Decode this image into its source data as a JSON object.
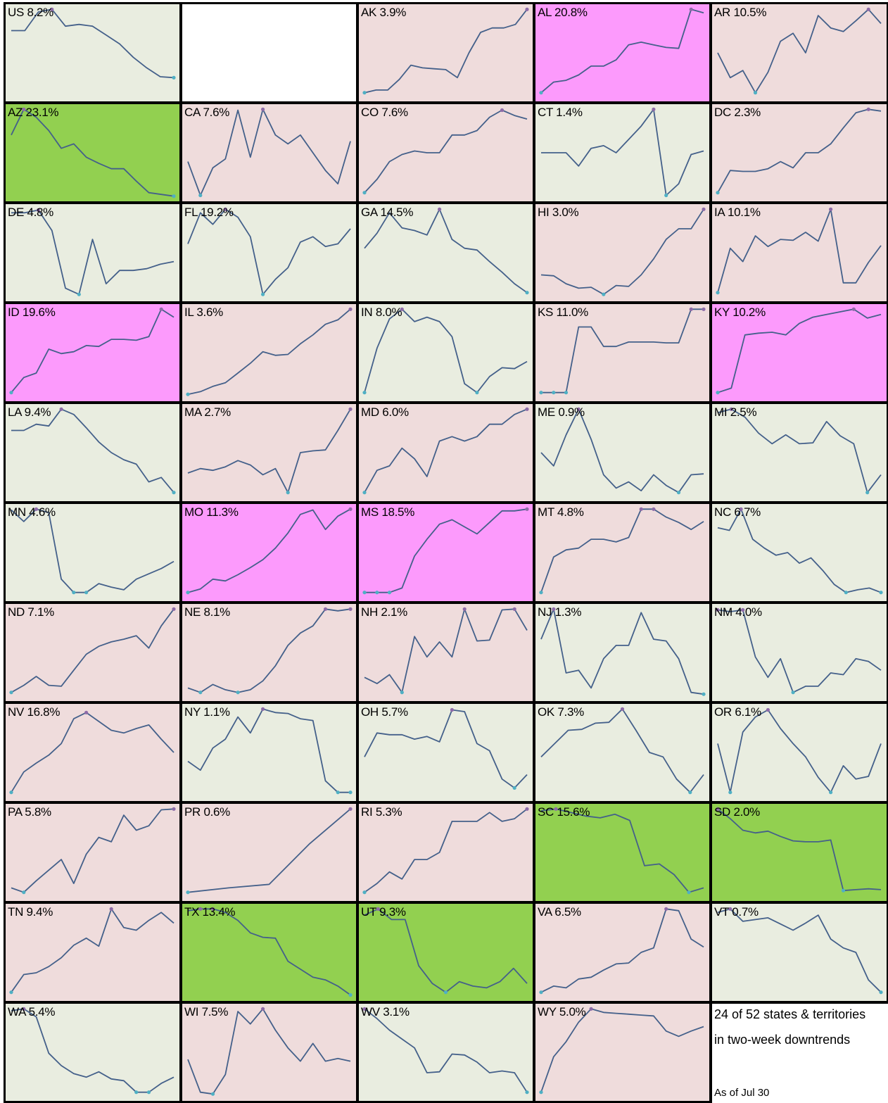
{
  "summary": {
    "line1": "24 of 52 states & territories",
    "line2": "in two-week downtrends",
    "as_of": "As of Jul 30"
  },
  "colors": {
    "downtrend_bg": "#e9ede0",
    "uptrend_bg": "#efdcdc",
    "strong_up_bg": "#fc9afc",
    "strong_down_bg": "#92d050",
    "line": "#44608a",
    "max_point": "#8e6ba8",
    "min_point": "#4fb0c4",
    "border": "#000000"
  },
  "chart_data": [
    {
      "type": "line",
      "label": "US 8.2%",
      "trend": "down",
      "values": [
        75,
        75,
        96,
        99,
        80,
        82,
        80,
        70,
        60,
        45,
        33,
        23,
        22
      ]
    },
    {
      "type": "blank"
    },
    {
      "type": "line",
      "label": "AK 3.9%",
      "trend": "up",
      "values": [
        5,
        8,
        8,
        20,
        36,
        33,
        32,
        31,
        22,
        50,
        73,
        78,
        78,
        82,
        99
      ]
    },
    {
      "type": "line",
      "label": "AL 20.8%",
      "trend": "strong-up",
      "values": [
        5,
        17,
        19,
        25,
        35,
        35,
        42,
        59,
        62,
        59,
        56,
        55,
        99,
        95
      ]
    },
    {
      "type": "line",
      "label": "AR 10.5%",
      "trend": "up",
      "values": [
        50,
        22,
        30,
        5,
        28,
        63,
        72,
        50,
        92,
        78,
        74,
        86,
        99,
        83
      ]
    },
    {
      "type": "line",
      "label": "AZ 23.1%",
      "trend": "strong-down",
      "values": [
        70,
        99,
        90,
        75,
        55,
        60,
        45,
        38,
        32,
        32,
        18,
        5,
        3,
        1
      ]
    },
    {
      "type": "line",
      "label": "CA 7.6%",
      "trend": "up",
      "values": [
        40,
        2,
        33,
        43,
        98,
        45,
        99,
        70,
        60,
        70,
        50,
        30,
        15,
        63
      ]
    },
    {
      "type": "line",
      "label": "CO 7.6%",
      "trend": "up",
      "values": [
        5,
        20,
        40,
        48,
        52,
        50,
        50,
        70,
        70,
        75,
        90,
        98,
        92,
        88
      ]
    },
    {
      "type": "line",
      "label": "CT 1.4%",
      "trend": "down",
      "values": [
        50,
        50,
        50,
        35,
        55,
        58,
        50,
        65,
        80,
        99,
        2,
        15,
        48,
        52
      ]
    },
    {
      "type": "line",
      "label": "DC 2.3%",
      "trend": "up",
      "values": [
        5,
        30,
        29,
        29,
        32,
        40,
        33,
        50,
        50,
        60,
        78,
        95,
        99,
        97
      ]
    },
    {
      "type": "line",
      "label": "DE 4.8%",
      "trend": "down",
      "values": [
        95,
        95,
        98,
        75,
        10,
        3,
        65,
        15,
        30,
        30,
        32,
        37,
        40
      ]
    },
    {
      "type": "line",
      "label": "FL 19.2%",
      "trend": "down",
      "values": [
        60,
        95,
        82,
        99,
        90,
        68,
        3,
        20,
        33,
        62,
        68,
        57,
        60,
        77
      ]
    },
    {
      "type": "line",
      "label": "GA 14.5%",
      "trend": "down",
      "values": [
        55,
        72,
        95,
        78,
        75,
        70,
        99,
        65,
        55,
        53,
        40,
        28,
        15,
        5
      ]
    },
    {
      "type": "line",
      "label": "HI 3.0%",
      "trend": "up",
      "values": [
        25,
        24,
        15,
        10,
        11,
        3,
        13,
        12,
        25,
        43,
        65,
        77,
        77,
        99
      ]
    },
    {
      "type": "line",
      "label": "IA 10.1%",
      "trend": "up",
      "values": [
        5,
        55,
        40,
        69,
        57,
        65,
        64,
        73,
        63,
        99,
        16,
        16,
        39,
        58
      ]
    },
    {
      "type": "line",
      "label": "ID 19.6%",
      "trend": "strong-up",
      "values": [
        5,
        22,
        27,
        54,
        49,
        51,
        58,
        57,
        65,
        65,
        64,
        68,
        99,
        90
      ]
    },
    {
      "type": "line",
      "label": "IL 3.6%",
      "trend": "up",
      "values": [
        3,
        6,
        12,
        16,
        27,
        38,
        51,
        47,
        48,
        60,
        70,
        82,
        87,
        99
      ]
    },
    {
      "type": "line",
      "label": "IN 8.0%",
      "trend": "down",
      "values": [
        5,
        55,
        88,
        99,
        85,
        90,
        85,
        68,
        15,
        5,
        23,
        33,
        32,
        40
      ]
    },
    {
      "type": "line",
      "label": "KS 11.0%",
      "trend": "up",
      "values": [
        5,
        5,
        5,
        79,
        79,
        57,
        57,
        62,
        62,
        62,
        61,
        61,
        99,
        99
      ]
    },
    {
      "type": "line",
      "label": "KY 10.2%",
      "trend": "strong-up",
      "values": [
        5,
        10,
        70,
        72,
        73,
        70,
        83,
        90,
        93,
        96,
        99,
        89,
        93
      ]
    },
    {
      "type": "line",
      "label": "LA 9.4%",
      "trend": "down",
      "values": [
        75,
        75,
        82,
        80,
        99,
        93,
        78,
        62,
        50,
        42,
        37,
        17,
        22,
        5
      ]
    },
    {
      "type": "line",
      "label": "MA 2.7%",
      "trend": "up",
      "values": [
        27,
        32,
        30,
        34,
        41,
        36,
        25,
        32,
        5,
        50,
        52,
        53,
        75,
        99
      ]
    },
    {
      "type": "line",
      "label": "MD 6.0%",
      "trend": "up",
      "values": [
        5,
        30,
        35,
        55,
        43,
        23,
        63,
        68,
        63,
        68,
        82,
        82,
        93,
        99
      ]
    },
    {
      "type": "line",
      "label": "ME 0.9%",
      "trend": "down",
      "values": [
        50,
        35,
        70,
        99,
        65,
        25,
        10,
        17,
        7,
        25,
        13,
        5,
        25,
        26
      ]
    },
    {
      "type": "line",
      "label": "MI 2.5%",
      "trend": "down",
      "values": [
        95,
        99,
        90,
        72,
        60,
        70,
        60,
        61,
        85,
        69,
        60,
        5,
        25
      ]
    },
    {
      "type": "line",
      "label": "MN 4.6%",
      "trend": "down",
      "values": [
        98,
        85,
        99,
        95,
        20,
        5,
        5,
        15,
        11,
        8,
        20,
        26,
        32,
        40
      ]
    },
    {
      "type": "line",
      "label": "MO 11.3%",
      "trend": "strong-up",
      "values": [
        5,
        9,
        20,
        18,
        25,
        33,
        42,
        55,
        72,
        93,
        98,
        76,
        91,
        99
      ]
    },
    {
      "type": "line",
      "label": "MS 18.5%",
      "trend": "strong-up",
      "values": [
        5,
        5,
        5,
        10,
        46,
        65,
        82,
        87,
        79,
        71,
        84,
        97,
        97,
        99
      ]
    },
    {
      "type": "line",
      "label": "MT 4.8%",
      "trend": "up",
      "values": [
        5,
        45,
        53,
        55,
        65,
        65,
        62,
        67,
        99,
        99,
        90,
        84,
        76,
        85
      ]
    },
    {
      "type": "line",
      "label": "NC 6.7%",
      "trend": "down",
      "values": [
        78,
        75,
        99,
        65,
        55,
        47,
        50,
        38,
        44,
        30,
        14,
        5,
        8,
        10,
        5
      ]
    },
    {
      "type": "line",
      "label": "ND 7.1%",
      "trend": "up",
      "values": [
        5,
        13,
        23,
        13,
        12,
        30,
        48,
        57,
        62,
        65,
        69,
        55,
        80,
        99
      ]
    },
    {
      "type": "line",
      "label": "NE 8.1%",
      "trend": "up",
      "values": [
        10,
        5,
        14,
        8,
        5,
        8,
        18,
        35,
        58,
        72,
        80,
        99,
        97,
        99
      ]
    },
    {
      "type": "line",
      "label": "NH 2.1%",
      "trend": "up",
      "values": [
        22,
        15,
        25,
        5,
        68,
        45,
        62,
        45,
        99,
        63,
        64,
        98,
        99,
        75
      ]
    },
    {
      "type": "line",
      "label": "NJ 1.3%",
      "trend": "down",
      "values": [
        65,
        99,
        27,
        30,
        10,
        43,
        58,
        58,
        95,
        65,
        63,
        43,
        5,
        3
      ]
    },
    {
      "type": "line",
      "label": "NM 4.0%",
      "trend": "down",
      "values": [
        98,
        96,
        98,
        45,
        22,
        43,
        5,
        12,
        12,
        27,
        25,
        43,
        40,
        30
      ]
    },
    {
      "type": "line",
      "label": "NV 16.8%",
      "trend": "up",
      "values": [
        5,
        28,
        38,
        47,
        60,
        88,
        95,
        85,
        75,
        72,
        77,
        81,
        65,
        50
      ]
    },
    {
      "type": "line",
      "label": "NY 1.1%",
      "trend": "down",
      "values": [
        40,
        30,
        55,
        65,
        90,
        72,
        99,
        95,
        94,
        88,
        86,
        18,
        5,
        5
      ]
    },
    {
      "type": "line",
      "label": "OH 5.7%",
      "trend": "down",
      "values": [
        45,
        72,
        70,
        70,
        65,
        68,
        62,
        98,
        96,
        60,
        52,
        20,
        10,
        25
      ]
    },
    {
      "type": "line",
      "label": "OK 7.3%",
      "trend": "down",
      "values": [
        45,
        60,
        75,
        76,
        83,
        84,
        99,
        75,
        50,
        45,
        20,
        5,
        25
      ]
    },
    {
      "type": "line",
      "label": "OR 6.1%",
      "trend": "down",
      "values": [
        60,
        5,
        73,
        90,
        98,
        77,
        60,
        45,
        22,
        5,
        35,
        20,
        23,
        60
      ]
    },
    {
      "type": "line",
      "label": "PA 5.8%",
      "trend": "up",
      "values": [
        10,
        5,
        18,
        30,
        42,
        15,
        48,
        67,
        62,
        92,
        75,
        80,
        98,
        99
      ]
    },
    {
      "type": "line",
      "label": "PR 0.6%",
      "trend": "up",
      "values": [
        5,
        10,
        14,
        60,
        99
      ]
    },
    {
      "type": "line",
      "label": "RI 5.3%",
      "trend": "up",
      "values": [
        5,
        15,
        28,
        20,
        42,
        42,
        50,
        85,
        85,
        85,
        95,
        85,
        88,
        99
      ]
    },
    {
      "type": "line",
      "label": "SC 15.6%",
      "trend": "strong-down",
      "values": [
        97,
        99,
        95,
        91,
        89,
        93,
        86,
        35,
        37,
        25,
        5,
        10
      ]
    },
    {
      "type": "line",
      "label": "SD 2.0%",
      "trend": "strong-down",
      "values": [
        99,
        88,
        75,
        72,
        74,
        68,
        63,
        62,
        62,
        64,
        7,
        8,
        9,
        8
      ]
    },
    {
      "type": "line",
      "label": "TN 9.4%",
      "trend": "up",
      "values": [
        5,
        25,
        27,
        34,
        44,
        58,
        66,
        57,
        99,
        78,
        75,
        86,
        95,
        83
      ]
    },
    {
      "type": "line",
      "label": "TX 13.4%",
      "trend": "strong-down",
      "values": [
        97,
        99,
        99,
        95,
        86,
        72,
        67,
        66,
        40,
        31,
        22,
        19,
        12,
        2
      ]
    },
    {
      "type": "line",
      "label": "UT 9.3%",
      "trend": "strong-down",
      "values": [
        92,
        99,
        87,
        87,
        35,
        15,
        5,
        17,
        12,
        10,
        17,
        32,
        15
      ]
    },
    {
      "type": "line",
      "label": "VA 6.5%",
      "trend": "up",
      "values": [
        5,
        12,
        10,
        20,
        22,
        30,
        37,
        38,
        50,
        55,
        99,
        97,
        65,
        56
      ]
    },
    {
      "type": "line",
      "label": "VT 0.7%",
      "trend": "down",
      "values": [
        95,
        99,
        85,
        87,
        89,
        82,
        75,
        83,
        92,
        65,
        55,
        50,
        19,
        5
      ]
    },
    {
      "type": "line",
      "label": "WA 5.4%",
      "trend": "down",
      "values": [
        97,
        99,
        90,
        49,
        35,
        26,
        22,
        28,
        20,
        18,
        5,
        5,
        15,
        22
      ]
    },
    {
      "type": "line",
      "label": "WI 7.5%",
      "trend": "up",
      "values": [
        42,
        5,
        3,
        25,
        96,
        82,
        99,
        75,
        55,
        40,
        60,
        40,
        43,
        40
      ]
    },
    {
      "type": "line",
      "label": "WV 3.1%",
      "trend": "down",
      "values": [
        99,
        88,
        75,
        65,
        55,
        27,
        28,
        48,
        47,
        39,
        27,
        29,
        27,
        5
      ]
    },
    {
      "type": "line",
      "label": "WY 5.0%",
      "trend": "up",
      "values": [
        5,
        45,
        62,
        84,
        99,
        95,
        94,
        93,
        92,
        91,
        74,
        68,
        74,
        79
      ]
    },
    {
      "type": "note"
    }
  ]
}
